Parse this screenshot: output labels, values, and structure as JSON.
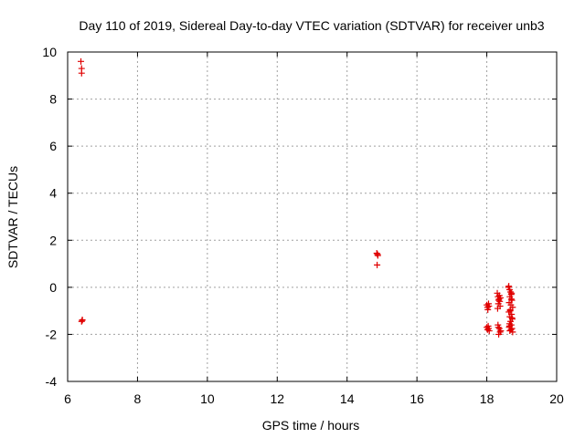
{
  "chart_data": {
    "type": "scatter",
    "title": "Day 110 of 2019, Sidereal Day-to-day VTEC variation (SDTVAR) for receiver unb3",
    "xlabel": "GPS time / hours",
    "ylabel": "SDTVAR / TECUs",
    "xlim": [
      6,
      20
    ],
    "ylim": [
      -4,
      10
    ],
    "xticks": [
      "6",
      "8",
      "10",
      "12",
      "14",
      "16",
      "18",
      "20"
    ],
    "yticks": [
      "-4",
      "-2",
      "0",
      "2",
      "4",
      "6",
      "8",
      "10"
    ],
    "grid": true,
    "marker": "plus",
    "color": "#e00000",
    "series": [
      {
        "name": "SDTVAR",
        "x": [
          6.38,
          6.4,
          6.4,
          6.42,
          6.4,
          6.42,
          14.85,
          14.87,
          14.88,
          14.86,
          18.0,
          18.02,
          18.05,
          18.03,
          18.06,
          18.0,
          18.02,
          18.05,
          18.07,
          18.04,
          18.3,
          18.32,
          18.35,
          18.37,
          18.33,
          18.36,
          18.38,
          18.34,
          18.31,
          18.39,
          18.32,
          18.36,
          18.38,
          18.34,
          18.4,
          18.33,
          18.62,
          18.65,
          18.68,
          18.7,
          18.66,
          18.72,
          18.64,
          18.69,
          18.74,
          18.67,
          18.63,
          18.71,
          18.66,
          18.73,
          18.68,
          18.65,
          18.7,
          18.64,
          18.72,
          18.69,
          18.66,
          18.74,
          18.63,
          18.7,
          18.67,
          18.72,
          18.65,
          18.71
        ],
        "y": [
          9.6,
          9.3,
          9.1,
          -1.4,
          -1.45,
          -1.38,
          1.45,
          1.4,
          1.35,
          0.95,
          -0.75,
          -0.85,
          -0.7,
          -0.95,
          -0.8,
          -1.7,
          -1.8,
          -1.75,
          -1.85,
          -1.65,
          -0.25,
          -0.4,
          -0.5,
          -0.6,
          -0.7,
          -0.35,
          -0.8,
          -0.55,
          -0.9,
          -0.45,
          -1.6,
          -1.75,
          -1.9,
          -2.0,
          -1.85,
          -1.7,
          0.0,
          -0.1,
          -0.2,
          -0.3,
          -0.4,
          -0.55,
          -0.65,
          -0.75,
          -0.85,
          -0.95,
          -1.05,
          -1.15,
          -1.25,
          -1.35,
          -1.45,
          -1.55,
          -1.6,
          -1.7,
          -1.75,
          -1.8,
          -1.85,
          -1.9,
          0.05,
          -0.5,
          -1.0,
          -1.3,
          -1.65,
          -0.25
        ]
      }
    ]
  }
}
